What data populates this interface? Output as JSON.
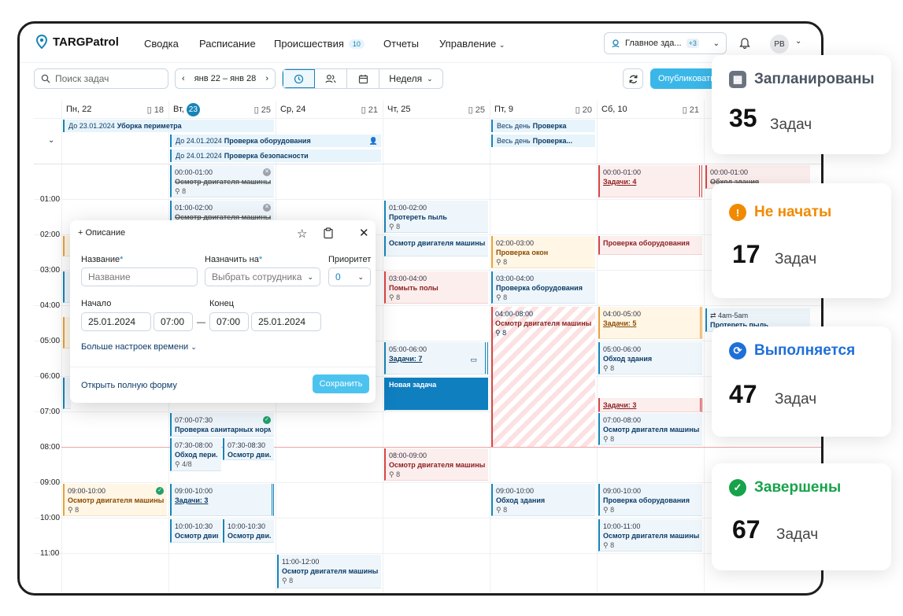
{
  "app": {
    "name": "TARGPatrol"
  },
  "nav": {
    "items": [
      "Сводка",
      "Расписание",
      "Происшествия",
      "Отчеты",
      "Управление"
    ],
    "incidents_count": "10",
    "site": "Главное зда...",
    "site_extra": "+3",
    "user_initials": "РВ"
  },
  "toolbar": {
    "search_placeholder": "Поиск задач",
    "date_range": "янв 22 – янв 28",
    "view": "Неделя",
    "publish": "Опубликовать"
  },
  "days": [
    {
      "label": "Пн, 22",
      "count": "18"
    },
    {
      "label": "Вт,",
      "date": "23",
      "count": "25"
    },
    {
      "label": "Ср, 24",
      "count": "21"
    },
    {
      "label": "Чт, 25",
      "count": "25"
    },
    {
      "label": "Пт, 9",
      "count": "20"
    },
    {
      "label": "Сб, 10",
      "count": "21"
    }
  ],
  "hours": [
    "01:00",
    "02:00",
    "03:00",
    "04:00",
    "05:00",
    "06:00",
    "07:00",
    "08:00",
    "09:00",
    "10:00",
    "11:00"
  ],
  "allday": [
    {
      "pre": "До 23.01.2024",
      "name": "Уборка периметра"
    },
    {
      "pre": "До 24.01.2024",
      "name": "Проверка оборудования"
    },
    {
      "pre": "До 24.01.2024",
      "name": "Проверка безопасности"
    },
    {
      "pre": "Весь день",
      "name": "Проверка"
    },
    {
      "pre": "Весь день",
      "name": "Проверка..."
    }
  ],
  "events": [
    {
      "t": "00:00-01:00",
      "n": "Осмотр двигателя машины",
      "m": "8"
    },
    {
      "t": "01:00-02:00",
      "n": "Осмотр двигателя машины",
      "m": "8"
    },
    {
      "t": "01:00-02:00",
      "n": "Протереть пыль",
      "m": "8"
    },
    {
      "t": "",
      "n": "Осмотр двигателя машины",
      "m": ""
    },
    {
      "t": "02:00-03:00",
      "n": "Проверка окон",
      "m": "8"
    },
    {
      "t": "03:00-04:00",
      "n": "Помыть полы",
      "m": "8"
    },
    {
      "t": "03:00-04:00",
      "n": "Проверка оборудования",
      "m": "8"
    },
    {
      "t": "04:00-08:00",
      "n": "Осмотр двигателя машины",
      "m": "8"
    },
    {
      "t": "05:00-06:00",
      "n": "Задачи: 7",
      "m": ""
    },
    {
      "t": "",
      "n": "Новая задача",
      "m": ""
    },
    {
      "t": "07:00-07:30",
      "n": "Проверка санитарных норм",
      "m": ""
    },
    {
      "t": "07:30-08:00",
      "n": "Обход пери...",
      "m": "4/8"
    },
    {
      "t": "07:30-08:30",
      "n": "Осмотр дви...",
      "m": ""
    },
    {
      "t": "08:00-09:00",
      "n": "Осмотр двигателя машины",
      "m": "8"
    },
    {
      "t": "09:00-10:00",
      "n": "Осмотр двигателя машины",
      "m": "8"
    },
    {
      "t": "09:00-10:00",
      "n": "Задачи: 3",
      "m": ""
    },
    {
      "t": "09:00-10:00",
      "n": "Обход здания",
      "m": "8"
    },
    {
      "t": "09:00-10:00",
      "n": "Проверка оборудования",
      "m": "8"
    },
    {
      "t": "10:00-10:30",
      "n": "Осмотр двиг...",
      "m": ""
    },
    {
      "t": "10:00-10:30",
      "n": "Осмотр дви...",
      "m": ""
    },
    {
      "t": "10:00-11:00",
      "n": "Осмотр двигателя машины",
      "m": "8"
    },
    {
      "t": "11:00-12:00",
      "n": "Осмотр двигателя машины",
      "m": "8"
    },
    {
      "t": "00:00-01:00",
      "n": "Задачи: 4",
      "m": ""
    },
    {
      "t": "",
      "n": "Проверка оборудования",
      "m": ""
    },
    {
      "t": "04:00-05:00",
      "n": "Задачи: 5",
      "m": ""
    },
    {
      "t": "05:00-06:00",
      "n": "Обход здания",
      "m": "8"
    },
    {
      "t": "",
      "n": "Задачи: 3",
      "m": ""
    },
    {
      "t": "07:00-08:00",
      "n": "Осмотр двигателя машины",
      "m": "8"
    },
    {
      "t": "00:00-01:00",
      "n": "Обход здания",
      "m": ""
    },
    {
      "t": "4am-5am",
      "n": "Протереть пыль",
      "m": ""
    }
  ],
  "popover": {
    "add": "Описание",
    "name_label": "Название",
    "name_placeholder": "Название",
    "assign_label": "Назначить на",
    "assign_placeholder": "Выбрать сотрудника",
    "priority_label": "Приоритет",
    "priority": "0",
    "start_label": "Начало",
    "end_label": "Конец",
    "start_date": "25.01.2024",
    "start_time": "07:00",
    "end_time": "07:00",
    "end_date": "25.01.2024",
    "more": "Больше настроек времени",
    "open_full": "Открыть полную форму",
    "save": "Сохранить"
  },
  "stats": [
    {
      "label": "Запланированы",
      "num": "35",
      "unit": "Задач",
      "color": "#4b5563"
    },
    {
      "label": "Не начаты",
      "num": "17",
      "unit": "Задач",
      "color": "#f08a00"
    },
    {
      "label": "Выполняется",
      "num": "47",
      "unit": "Задач",
      "color": "#1e6fd9"
    },
    {
      "label": "Завершены",
      "num": "67",
      "unit": "Задач",
      "color": "#16a34a"
    }
  ]
}
